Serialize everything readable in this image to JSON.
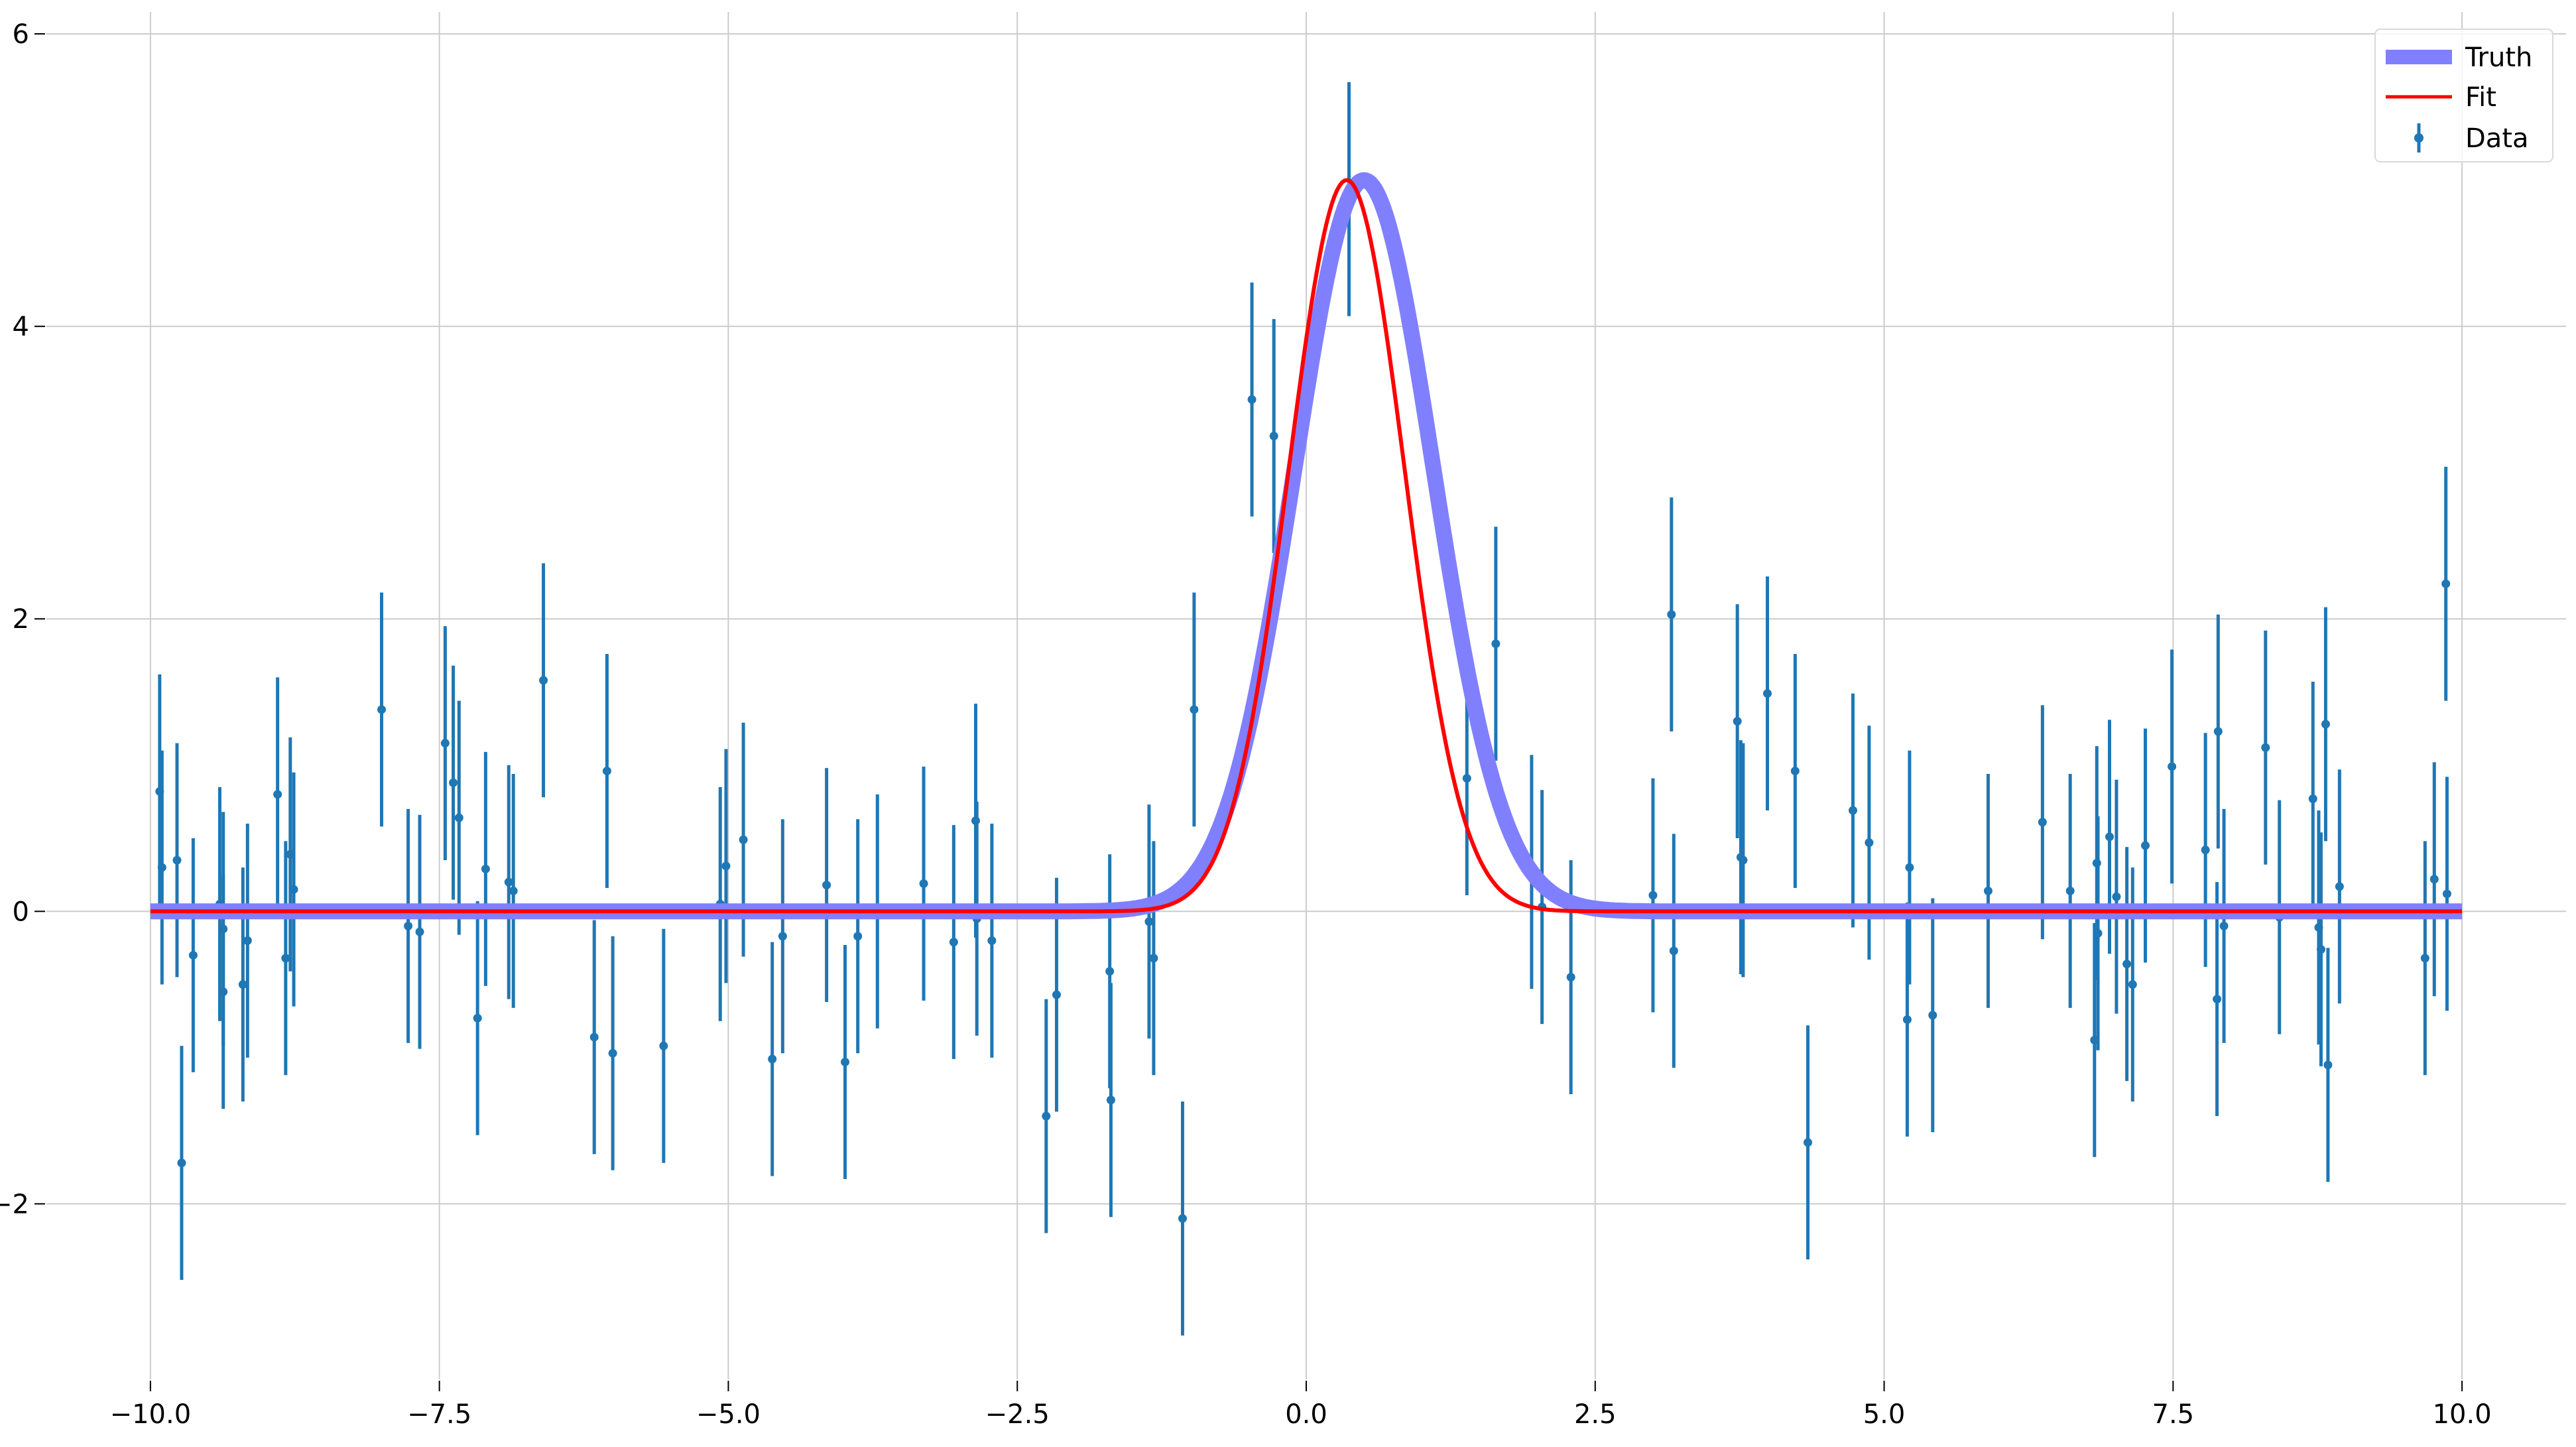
{
  "chart_data": {
    "type": "scatter",
    "title": "",
    "xlabel": "",
    "ylabel": "",
    "xlim": [
      -10.9,
      10.9
    ],
    "ylim": [
      -3.2,
      6.15
    ],
    "grid": true,
    "legend_position": "top-right",
    "x_ticks": [
      -10.0,
      -7.5,
      -5.0,
      -2.5,
      0.0,
      2.5,
      5.0,
      7.5,
      10.0
    ],
    "x_tick_labels": [
      "−10.0",
      "−7.5",
      "−5.0",
      "−2.5",
      "0.0",
      "2.5",
      "5.0",
      "7.5",
      "10.0"
    ],
    "y_ticks": [
      -2,
      0,
      2,
      4,
      6
    ],
    "y_tick_labels": [
      "−2",
      "0",
      "2",
      "4",
      "6"
    ],
    "colors": {
      "truth": "#8080ff",
      "fit": "#ff0000",
      "data": "#1f77b4",
      "grid": "#cccccc"
    },
    "series": [
      {
        "name": "Truth",
        "kind": "line",
        "model": "gaussian",
        "params": {
          "amplitude": 5.0,
          "mean": 0.5,
          "sigma": 0.6
        },
        "x_range": [
          -10,
          10
        ]
      },
      {
        "name": "Fit",
        "kind": "line",
        "model": "gaussian",
        "params": {
          "amplitude": 5.0,
          "mean": 0.35,
          "sigma": 0.5
        },
        "x_range": [
          -10,
          10
        ]
      },
      {
        "name": "Data",
        "kind": "errorbar",
        "yerr": 0.8,
        "points": [
          [
            -9.92,
            0.82
          ],
          [
            -9.9,
            0.3
          ],
          [
            -9.77,
            0.35
          ],
          [
            -9.73,
            -1.72
          ],
          [
            -9.63,
            -0.3
          ],
          [
            -9.4,
            0.05
          ],
          [
            -9.37,
            -0.12
          ],
          [
            -9.37,
            -0.55
          ],
          [
            -9.2,
            -0.5
          ],
          [
            -9.16,
            -0.2
          ],
          [
            -8.9,
            0.8
          ],
          [
            -8.83,
            -0.32
          ],
          [
            -8.79,
            0.39
          ],
          [
            -8.76,
            0.15
          ],
          [
            -8.0,
            1.38
          ],
          [
            -7.77,
            -0.1
          ],
          [
            -7.67,
            -0.14
          ],
          [
            -7.45,
            1.15
          ],
          [
            -7.38,
            0.88
          ],
          [
            -7.33,
            0.64
          ],
          [
            -7.17,
            -0.73
          ],
          [
            -7.1,
            0.29
          ],
          [
            -6.9,
            0.2
          ],
          [
            -6.86,
            0.14
          ],
          [
            -6.6,
            1.58
          ],
          [
            -6.16,
            -0.86
          ],
          [
            -6.05,
            0.96
          ],
          [
            -6.0,
            -0.97
          ],
          [
            -5.56,
            -0.92
          ],
          [
            -5.07,
            0.05
          ],
          [
            -5.02,
            0.31
          ],
          [
            -4.87,
            0.49
          ],
          [
            -4.62,
            -1.01
          ],
          [
            -4.53,
            -0.17
          ],
          [
            -4.15,
            0.18
          ],
          [
            -3.99,
            -1.03
          ],
          [
            -3.88,
            -0.17
          ],
          [
            -3.71,
            0.0
          ],
          [
            -3.31,
            0.19
          ],
          [
            -3.05,
            -0.21
          ],
          [
            -2.86,
            0.62
          ],
          [
            -2.85,
            -0.05
          ],
          [
            -2.72,
            -0.2
          ],
          [
            -2.25,
            -1.4
          ],
          [
            -2.16,
            -0.57
          ],
          [
            -1.7,
            -0.41
          ],
          [
            -1.69,
            -1.29
          ],
          [
            -1.36,
            -0.07
          ],
          [
            -1.32,
            -0.32
          ],
          [
            -1.07,
            -2.1
          ],
          [
            -0.97,
            1.38
          ],
          [
            -0.47,
            3.5
          ],
          [
            -0.28,
            3.25
          ],
          [
            0.37,
            4.87
          ],
          [
            1.39,
            0.91
          ],
          [
            1.64,
            1.83
          ],
          [
            1.95,
            0.27
          ],
          [
            2.04,
            0.03
          ],
          [
            2.29,
            -0.45
          ],
          [
            3.0,
            0.11
          ],
          [
            3.16,
            2.03
          ],
          [
            3.18,
            -0.27
          ],
          [
            3.73,
            1.3
          ],
          [
            3.76,
            0.37
          ],
          [
            3.78,
            0.35
          ],
          [
            3.99,
            1.49
          ],
          [
            4.23,
            0.96
          ],
          [
            4.34,
            -1.58
          ],
          [
            4.73,
            0.69
          ],
          [
            4.87,
            0.47
          ],
          [
            5.2,
            -0.74
          ],
          [
            5.22,
            0.3
          ],
          [
            5.42,
            -0.71
          ],
          [
            5.9,
            0.14
          ],
          [
            6.37,
            0.61
          ],
          [
            6.61,
            0.14
          ],
          [
            6.82,
            -0.88
          ],
          [
            6.84,
            0.33
          ],
          [
            6.85,
            -0.15
          ],
          [
            6.95,
            0.51
          ],
          [
            7.01,
            0.1
          ],
          [
            7.1,
            -0.36
          ],
          [
            7.15,
            -0.5
          ],
          [
            7.26,
            0.45
          ],
          [
            7.49,
            0.99
          ],
          [
            7.78,
            0.42
          ],
          [
            7.88,
            -0.6
          ],
          [
            7.89,
            1.23
          ],
          [
            7.94,
            -0.1
          ],
          [
            8.3,
            1.12
          ],
          [
            8.42,
            -0.04
          ],
          [
            8.71,
            0.77
          ],
          [
            8.76,
            -0.11
          ],
          [
            8.78,
            -0.26
          ],
          [
            8.82,
            1.28
          ],
          [
            8.84,
            -1.05
          ],
          [
            8.94,
            0.17
          ],
          [
            9.68,
            -0.32
          ],
          [
            9.76,
            0.22
          ],
          [
            9.86,
            2.24
          ],
          [
            9.87,
            0.12
          ]
        ]
      }
    ]
  }
}
